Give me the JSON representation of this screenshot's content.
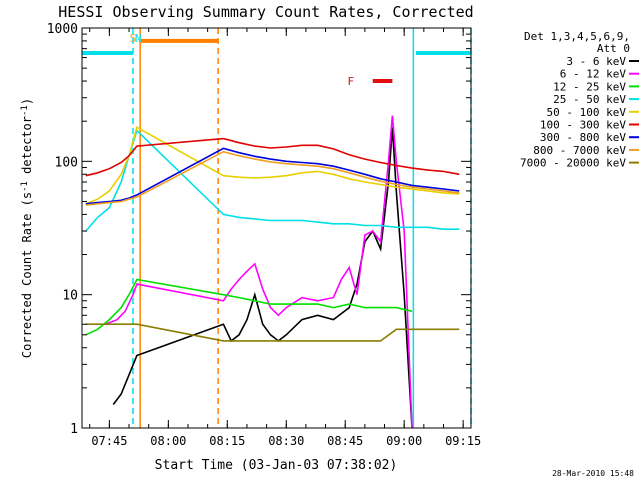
{
  "chart_data": {
    "type": "line",
    "title": "HESSI Observing Summary Count Rates, Corrected",
    "xlabel": "Start Time (03-Jan-03 07:38:02)",
    "ylabel_main": "Corrected Count Rate (s",
    "ylabel_sup1": "-1",
    "ylabel_mid": " detector",
    "ylabel_sup2": "-1",
    "ylabel_end": ")",
    "y_scale": "log",
    "ylim": [
      1,
      1000
    ],
    "xlim": [
      "07:38:02",
      "09:17:00"
    ],
    "x_ticks": [
      "07:45",
      "08:00",
      "08:15",
      "08:30",
      "08:45",
      "09:00",
      "09:15"
    ],
    "y_ticks": [
      "1",
      "10",
      "100",
      "1000"
    ],
    "legend_title_1": "Det 1,3,4,5,6,9,",
    "legend_title_2": "Att 0",
    "timestamp": "28-Mar-2010 15:48",
    "annotations": [
      {
        "label": "S",
        "time": "07:51:00",
        "color": "#f0a020"
      },
      {
        "label": "N",
        "time": "07:52:20",
        "color": "#00e0e8"
      },
      {
        "label": "F",
        "time": "08:50:00",
        "color": "#e01010"
      }
    ],
    "bars": [
      {
        "name": "night",
        "from": "07:53:00",
        "to": "08:12:30",
        "level": 800,
        "color": "#ff8000"
      },
      {
        "name": "flare",
        "from": "08:52:00",
        "to": "08:57:00",
        "level": 400,
        "color": "#e01010"
      },
      {
        "name": "saa-left",
        "from": "07:38:02",
        "to": "07:51:00",
        "level": 650,
        "color": "#00e0e8"
      },
      {
        "name": "saa-right",
        "from": "09:03:00",
        "to": "09:17:00",
        "level": 650,
        "color": "#00e0e8"
      }
    ],
    "markers": [
      {
        "time": "07:52:50",
        "color": "#ff8000",
        "style": "solid"
      },
      {
        "time": "08:12:40",
        "color": "#ff8000",
        "style": "dashed"
      },
      {
        "time": "07:51:00",
        "color": "#00e0e8",
        "style": "dashed"
      },
      {
        "time": "09:02:20",
        "color": "#00e0e8",
        "style": "solid"
      },
      {
        "time": "09:17:00",
        "color": "#00e0e8",
        "style": "dashed"
      }
    ],
    "series": [
      {
        "name": "3 - 6 keV",
        "color": "#000000",
        "x": [
          "07:46",
          "07:48",
          "07:50",
          "07:52",
          "08:14",
          "08:16",
          "08:18",
          "08:20",
          "08:22",
          "08:24",
          "08:26",
          "08:28",
          "08:30",
          "08:34",
          "08:38",
          "08:42",
          "08:46",
          "08:48",
          "08:50",
          "08:52",
          "08:54",
          "08:56",
          "08:57",
          "08:58",
          "09:00",
          "09:02"
        ],
        "values": [
          1.5,
          1.8,
          2.5,
          3.5,
          6.0,
          4.5,
          5.0,
          6.5,
          10.0,
          6.0,
          5.0,
          4.5,
          5.0,
          6.5,
          7.0,
          6.5,
          8.0,
          12.0,
          25.0,
          30.0,
          22.0,
          70.0,
          180.0,
          60.0,
          10.0,
          1.0
        ]
      },
      {
        "name": "6 - 12 keV",
        "color": "#ff00ff",
        "x": [
          "07:44",
          "07:47",
          "07:49",
          "07:51",
          "07:52",
          "08:14",
          "08:16",
          "08:18",
          "08:20",
          "08:22",
          "08:24",
          "08:26",
          "08:28",
          "08:30",
          "08:34",
          "08:38",
          "08:42",
          "08:44",
          "08:46",
          "08:48",
          "08:50",
          "08:52",
          "08:54",
          "08:56",
          "08:57",
          "08:58",
          "09:00",
          "09:02"
        ],
        "values": [
          6.0,
          6.5,
          7.5,
          10.0,
          12.0,
          9.0,
          11.0,
          13.0,
          15.0,
          17.0,
          11.0,
          8.0,
          7.0,
          8.0,
          9.5,
          9.0,
          9.5,
          13.0,
          16.0,
          10.0,
          28.0,
          30.0,
          25.0,
          100.0,
          220.0,
          100.0,
          30.0,
          1.0
        ]
      },
      {
        "name": "12 - 25 keV",
        "color": "#00e000",
        "x": [
          "07:39",
          "07:42",
          "07:45",
          "07:48",
          "07:50",
          "07:52",
          "08:14",
          "08:18",
          "08:22",
          "08:26",
          "08:30",
          "08:34",
          "08:38",
          "08:42",
          "08:46",
          "08:50",
          "08:54",
          "08:58",
          "09:02"
        ],
        "values": [
          5.0,
          5.5,
          6.5,
          8.0,
          10.0,
          13.0,
          10.0,
          9.5,
          9.0,
          8.5,
          8.5,
          8.5,
          8.5,
          8.0,
          8.5,
          8.0,
          8.0,
          8.0,
          7.5
        ]
      },
      {
        "name": "25 - 50 keV",
        "color": "#00e0e8",
        "x": [
          "07:39",
          "07:42",
          "07:45",
          "07:48",
          "07:50",
          "07:52",
          "08:14",
          "08:18",
          "08:22",
          "08:26",
          "08:30",
          "08:34",
          "08:38",
          "08:42",
          "08:46",
          "08:50",
          "08:54",
          "08:58",
          "09:02",
          "09:06",
          "09:10",
          "09:14"
        ],
        "values": [
          30.0,
          38.0,
          45.0,
          70.0,
          110.0,
          170.0,
          40.0,
          38.0,
          37.0,
          36.0,
          36.0,
          36.0,
          35.0,
          34.0,
          34.0,
          33.0,
          33.0,
          32.0,
          32.0,
          32.0,
          31.0,
          31.0
        ]
      },
      {
        "name": "50 - 100 keV",
        "color": "#e8d000",
        "x": [
          "07:39",
          "07:42",
          "07:45",
          "07:48",
          "07:50",
          "07:52",
          "08:14",
          "08:18",
          "08:22",
          "08:26",
          "08:30",
          "08:34",
          "08:38",
          "08:42",
          "08:46",
          "08:50",
          "08:54",
          "08:58",
          "09:02",
          "09:06",
          "09:10",
          "09:14"
        ],
        "values": [
          48.0,
          52.0,
          60.0,
          80.0,
          110.0,
          180.0,
          78.0,
          76.0,
          75.0,
          76.0,
          78.0,
          82.0,
          84.0,
          80.0,
          74.0,
          70.0,
          67.0,
          64.0,
          62.0,
          60.0,
          58.0,
          57.0
        ]
      },
      {
        "name": "100 - 300 keV",
        "color": "#e00000",
        "x": [
          "07:39",
          "07:42",
          "07:45",
          "07:48",
          "07:50",
          "07:52",
          "08:14",
          "08:18",
          "08:22",
          "08:26",
          "08:30",
          "08:34",
          "08:38",
          "08:42",
          "08:46",
          "08:50",
          "08:54",
          "08:58",
          "09:02",
          "09:06",
          "09:10",
          "09:14"
        ],
        "values": [
          78.0,
          82.0,
          88.0,
          98.0,
          110.0,
          130.0,
          148.0,
          138.0,
          130.0,
          126.0,
          128.0,
          132.0,
          132.0,
          124.0,
          112.0,
          104.0,
          98.0,
          93.0,
          89.0,
          86.0,
          84.0,
          80.0
        ]
      },
      {
        "name": "300 - 800 keV",
        "color": "#0000e0",
        "x": [
          "07:39",
          "07:42",
          "07:45",
          "07:48",
          "07:50",
          "07:52",
          "08:14",
          "08:18",
          "08:22",
          "08:26",
          "08:30",
          "08:34",
          "08:38",
          "08:42",
          "08:46",
          "08:50",
          "08:54",
          "08:58",
          "09:02",
          "09:06",
          "09:10",
          "09:14"
        ],
        "values": [
          48.0,
          49.0,
          50.0,
          51.0,
          53.0,
          56.0,
          125.0,
          116.0,
          109.0,
          104.0,
          100.0,
          98.0,
          96.0,
          92.0,
          86.0,
          80.0,
          74.0,
          70.0,
          66.0,
          64.0,
          62.0,
          60.0
        ]
      },
      {
        "name": "800 - 7000 keV",
        "color": "#f0a020",
        "x": [
          "07:39",
          "07:42",
          "07:45",
          "07:48",
          "07:50",
          "07:52",
          "08:14",
          "08:18",
          "08:22",
          "08:26",
          "08:30",
          "08:34",
          "08:38",
          "08:42",
          "08:46",
          "08:50",
          "08:54",
          "08:58",
          "09:02",
          "09:06",
          "09:10",
          "09:14"
        ],
        "values": [
          47.0,
          48.0,
          49.0,
          50.0,
          52.0,
          54.0,
          118.0,
          110.0,
          104.0,
          99.0,
          96.0,
          94.0,
          92.0,
          88.0,
          82.0,
          76.0,
          71.0,
          67.0,
          64.0,
          62.0,
          60.0,
          58.0
        ]
      },
      {
        "name": "7000 - 20000 keV",
        "color": "#8b7d00",
        "x": [
          "07:39",
          "07:42",
          "07:45",
          "07:48",
          "07:50",
          "07:52",
          "08:14",
          "08:18",
          "08:22",
          "08:26",
          "08:30",
          "08:34",
          "08:38",
          "08:42",
          "08:46",
          "08:50",
          "08:54",
          "08:58",
          "09:02",
          "09:06",
          "09:10",
          "09:14"
        ],
        "values": [
          6.0,
          6.0,
          6.0,
          6.0,
          6.0,
          6.0,
          4.5,
          4.5,
          4.5,
          4.5,
          4.5,
          4.5,
          4.5,
          4.5,
          4.5,
          4.5,
          4.5,
          5.5,
          5.5,
          5.5,
          5.5,
          5.5
        ]
      }
    ]
  }
}
